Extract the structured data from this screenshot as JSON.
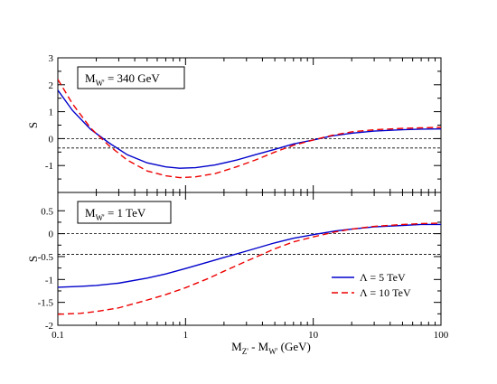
{
  "chart_data": {
    "type": "line",
    "x_scale": "log",
    "xlim": [
      0.1,
      100
    ],
    "xlabel": "M_Z' - M_W' (GeV)",
    "xlabel_parts": {
      "m1": "M",
      "sub1": "Z'",
      "mid": " - M",
      "sub2": "W'",
      "unit": "(GeV)"
    },
    "x_ticks": [
      {
        "value": 0.1,
        "label": "0.1"
      },
      {
        "value": 1,
        "label": "1"
      },
      {
        "value": 10,
        "label": "10"
      },
      {
        "value": 100,
        "label": "100"
      }
    ],
    "legend": {
      "position": "lower-right of bottom panel",
      "entries": [
        {
          "label": "Λ = 5 TeV",
          "color": "#0000cc",
          "dash": "solid"
        },
        {
          "label": "Λ = 10 TeV",
          "color": "#ee0000",
          "dash": "dashed"
        }
      ]
    },
    "panels": [
      {
        "box_label": {
          "pre": "M",
          "sub": "W'",
          "post": " = 340 GeV"
        },
        "ylabel": "S",
        "ylim": [
          -2,
          3
        ],
        "y_ticks": [
          {
            "value": 3,
            "label": "3"
          },
          {
            "value": 2,
            "label": "2"
          },
          {
            "value": 1,
            "label": "1"
          },
          {
            "value": 0,
            "label": "0"
          },
          {
            "value": -1,
            "label": "-1"
          }
        ],
        "reference_lines": [
          0,
          -0.35
        ],
        "series": [
          {
            "name": "Λ = 5 TeV",
            "color": "#0000cc",
            "dash": "solid",
            "x": [
              0.1,
              0.13,
              0.18,
              0.25,
              0.35,
              0.5,
              0.7,
              0.9,
              1.2,
              1.7,
              2.5,
              3.5,
              5,
              7,
              10,
              14,
              20,
              30,
              50,
              70,
              100
            ],
            "y": [
              1.8,
              1.05,
              0.35,
              -0.15,
              -0.6,
              -0.9,
              -1.05,
              -1.1,
              -1.08,
              -0.98,
              -0.8,
              -0.6,
              -0.4,
              -0.2,
              -0.05,
              0.1,
              0.2,
              0.28,
              0.33,
              0.35,
              0.36
            ]
          },
          {
            "name": "Λ = 10 TeV",
            "color": "#ee0000",
            "dash": "dashed",
            "x": [
              0.1,
              0.13,
              0.18,
              0.25,
              0.35,
              0.5,
              0.7,
              0.9,
              1.2,
              1.7,
              2.5,
              3.5,
              5,
              7,
              10,
              14,
              20,
              30,
              50,
              70,
              100
            ],
            "y": [
              2.2,
              1.3,
              0.4,
              -0.25,
              -0.8,
              -1.2,
              -1.38,
              -1.45,
              -1.42,
              -1.3,
              -1.05,
              -0.8,
              -0.5,
              -0.25,
              -0.05,
              0.12,
              0.25,
              0.33,
              0.38,
              0.4,
              0.42
            ]
          }
        ]
      },
      {
        "box_label": {
          "pre": "M",
          "sub": "W'",
          "post": " = 1 TeV"
        },
        "ylabel": "S",
        "ylim": [
          -2,
          0.9
        ],
        "y_ticks": [
          {
            "value": 0.5,
            "label": "0.5"
          },
          {
            "value": 0,
            "label": "0"
          },
          {
            "value": -0.5,
            "label": "-0.5"
          },
          {
            "value": -1,
            "label": "-1"
          },
          {
            "value": -1.5,
            "label": "-1.5"
          },
          {
            "value": -2,
            "label": "-2"
          }
        ],
        "reference_lines": [
          0,
          -0.45
        ],
        "series": [
          {
            "name": "Λ = 5 TeV",
            "color": "#0000cc",
            "dash": "solid",
            "x": [
              0.1,
              0.15,
              0.2,
              0.3,
              0.5,
              0.7,
              1,
              1.5,
              2,
              3,
              5,
              7,
              10,
              15,
              20,
              30,
              50,
              70,
              100
            ],
            "y": [
              -1.17,
              -1.15,
              -1.13,
              -1.08,
              -0.97,
              -0.88,
              -0.76,
              -0.62,
              -0.52,
              -0.38,
              -0.2,
              -0.1,
              -0.02,
              0.06,
              0.1,
              0.15,
              0.18,
              0.2,
              0.2
            ]
          },
          {
            "name": "Λ = 10 TeV",
            "color": "#ee0000",
            "dash": "dashed",
            "x": [
              0.1,
              0.15,
              0.2,
              0.3,
              0.5,
              0.7,
              1,
              1.5,
              2,
              3,
              5,
              7,
              10,
              15,
              20,
              30,
              50,
              70,
              100
            ],
            "y": [
              -1.76,
              -1.74,
              -1.7,
              -1.62,
              -1.45,
              -1.33,
              -1.18,
              -0.98,
              -0.82,
              -0.6,
              -0.33,
              -0.18,
              -0.07,
              0.04,
              0.1,
              0.16,
              0.2,
              0.22,
              0.23
            ]
          }
        ]
      }
    ]
  }
}
